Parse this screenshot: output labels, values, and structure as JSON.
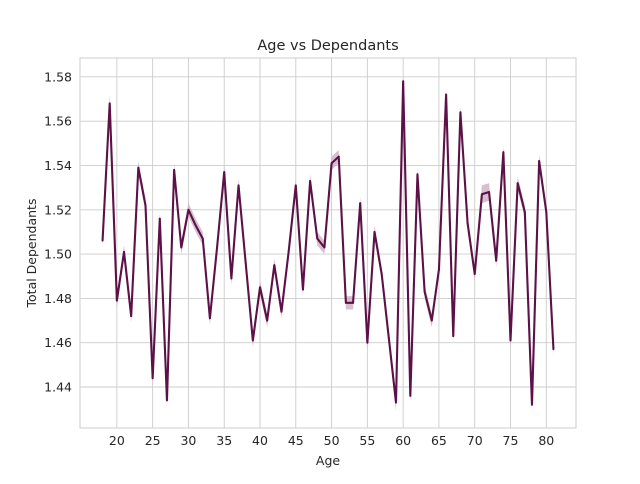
{
  "chart_data": {
    "type": "line",
    "title": "Age vs Dependants",
    "xlabel": "Age",
    "ylabel": "Total Dependants",
    "xlim": [
      14.85,
      84.15
    ],
    "ylim": [
      1.4215,
      1.5885
    ],
    "xticks": [
      20,
      25,
      30,
      35,
      40,
      45,
      50,
      55,
      60,
      65,
      70,
      75,
      80
    ],
    "yticks": [
      1.44,
      1.46,
      1.48,
      1.5,
      1.52,
      1.54,
      1.56,
      1.58
    ],
    "ytick_labels": [
      "1.44",
      "1.46",
      "1.48",
      "1.50",
      "1.52",
      "1.54",
      "1.56",
      "1.58"
    ],
    "grid": true,
    "legend": "none",
    "series": [
      {
        "color": "#5c1147",
        "band_color": "#c9a9bd",
        "x": [
          18,
          19,
          20,
          21,
          22,
          23,
          24,
          25,
          26,
          27,
          28,
          29,
          30,
          31,
          32,
          33,
          34,
          35,
          36,
          37,
          38,
          39,
          40,
          41,
          42,
          43,
          44,
          45,
          46,
          47,
          48,
          49,
          50,
          51,
          52,
          53,
          54,
          55,
          56,
          57,
          58,
          59,
          60,
          61,
          62,
          63,
          64,
          65,
          66,
          67,
          68,
          69,
          70,
          71,
          72,
          73,
          74,
          75,
          76,
          77,
          78,
          79,
          80,
          81
        ],
        "y": [
          1.506,
          1.568,
          1.479,
          1.501,
          1.472,
          1.539,
          1.522,
          1.444,
          1.516,
          1.434,
          1.538,
          1.503,
          1.52,
          1.513,
          1.507,
          1.471,
          1.503,
          1.537,
          1.489,
          1.531,
          1.496,
          1.461,
          1.485,
          1.47,
          1.495,
          1.474,
          1.501,
          1.531,
          1.484,
          1.533,
          1.507,
          1.503,
          1.541,
          1.544,
          1.478,
          1.478,
          1.523,
          1.46,
          1.51,
          1.491,
          1.462,
          1.433,
          1.578,
          1.436,
          1.536,
          1.483,
          1.47,
          1.493,
          1.572,
          1.463,
          1.564,
          1.514,
          1.491,
          1.527,
          1.528,
          1.497,
          1.546,
          1.461,
          1.532,
          1.519,
          1.432,
          1.542,
          1.519,
          1.457
        ],
        "ci_half_width": [
          0.003,
          0.004,
          0.003,
          0.003,
          0.003,
          0.003,
          0.003,
          0.003,
          0.003,
          0.003,
          0.003,
          0.003,
          0.003,
          0.003,
          0.003,
          0.003,
          0.003,
          0.003,
          0.003,
          0.003,
          0.003,
          0.003,
          0.003,
          0.003,
          0.003,
          0.003,
          0.003,
          0.003,
          0.003,
          0.003,
          0.003,
          0.003,
          0.003,
          0.003,
          0.003,
          0.003,
          0.003,
          0.003,
          0.003,
          0.003,
          0.003,
          0.004,
          0.003,
          0.003,
          0.003,
          0.003,
          0.003,
          0.003,
          0.003,
          0.003,
          0.003,
          0.003,
          0.003,
          0.004,
          0.004,
          0.003,
          0.003,
          0.003,
          0.003,
          0.003,
          0.003,
          0.003,
          0.003,
          0.003
        ]
      }
    ]
  }
}
